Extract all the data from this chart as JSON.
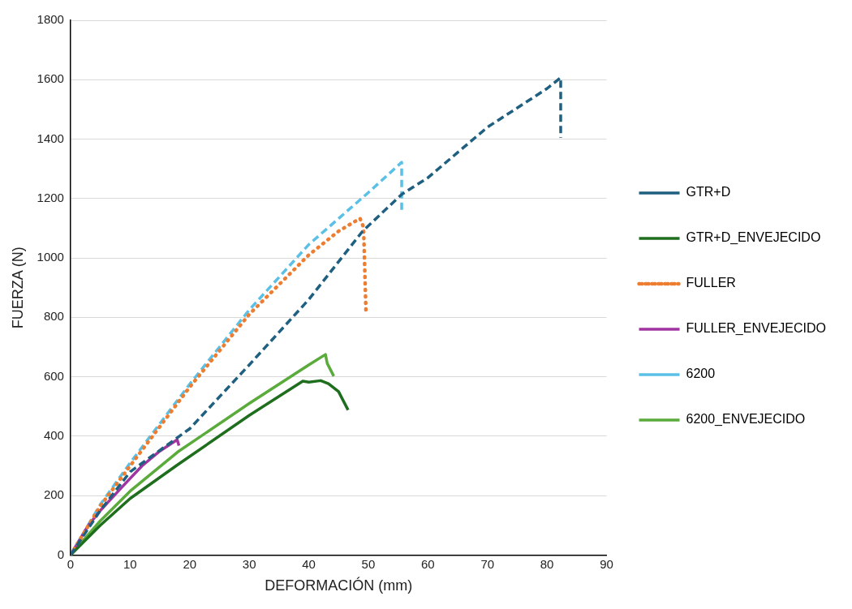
{
  "chart_data": {
    "type": "line",
    "xlabel": "DEFORMACIÓN (mm)",
    "ylabel": "FUERZA (N)",
    "xlim": [
      0,
      90
    ],
    "xticks": [
      0,
      10,
      20,
      30,
      40,
      50,
      60,
      70,
      80,
      90
    ],
    "ylim": [
      0,
      1800
    ],
    "yticks": [
      0,
      200,
      400,
      600,
      800,
      1000,
      1200,
      1400,
      1600,
      1800
    ],
    "grid": "y",
    "legend": "right",
    "marker": "none",
    "series": [
      {
        "name": "GTR+D",
        "color": "#1f5f80",
        "line_style": "dashed",
        "x": [
          0,
          5,
          10,
          20,
          30,
          40,
          49,
          55.6,
          60,
          70,
          80,
          82.3,
          82.3
        ],
        "values": [
          0,
          150,
          280,
          425,
          640,
          860,
          1089,
          1214,
          1270,
          1440,
          1570,
          1607,
          1404
        ]
      },
      {
        "name": "GTR+D_ENVEJECIDO",
        "color": "#1e6e1e",
        "line_style": "solid",
        "x": [
          0,
          5,
          10,
          18,
          30,
          39,
          40,
          42,
          43.3,
          45,
          46.6
        ],
        "values": [
          0,
          100,
          190,
          304,
          470,
          585,
          582,
          587,
          577,
          550,
          488
        ]
      },
      {
        "name": "FULLER",
        "color": "#ed7d31",
        "line_style": "dotted",
        "x": [
          0,
          5,
          10,
          20,
          30,
          40,
          45,
          48.6,
          49.2,
          49.6
        ],
        "values": [
          0,
          165,
          300,
          565,
          810,
          1010,
          1090,
          1133,
          1103,
          821
        ]
      },
      {
        "name": "FULLER_ENVEJECIDO",
        "color": "#a034a0",
        "line_style": "solid",
        "x": [
          0,
          3,
          5,
          8.7,
          12,
          15,
          17.9,
          18.2
        ],
        "values": [
          0,
          100,
          150,
          230,
          300,
          350,
          388,
          368
        ]
      },
      {
        "name": "6200",
        "color": "#5bc0e6",
        "line_style": "dashed",
        "x": [
          0,
          5,
          10,
          20,
          30,
          40,
          50,
          55.6,
          55.6
        ],
        "values": [
          0,
          170,
          310,
          575,
          825,
          1045,
          1220,
          1322,
          1152
        ]
      },
      {
        "name": "6200_ENVEJECIDO",
        "color": "#5aab3c",
        "line_style": "solid",
        "x": [
          0,
          5,
          10,
          18,
          30,
          40,
          42.8,
          43.1,
          44.2
        ],
        "values": [
          0,
          115,
          215,
          347,
          510,
          640,
          675,
          645,
          602
        ]
      }
    ]
  }
}
